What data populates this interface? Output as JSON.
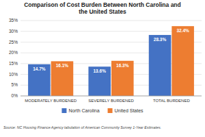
{
  "chart_data": {
    "type": "bar",
    "title": "Comparison of Cost Burden Between North Carolina and\nthe United States",
    "categories": [
      "MODERATELY BURDENED",
      "SEVERELY BURDENED",
      "TOTAL BURDENED"
    ],
    "series": [
      {
        "name": "North Carolina",
        "color": "#4472C4",
        "values": [
          14.7,
          13.6,
          28.3
        ],
        "value_labels": [
          "14.7%",
          "13.6%",
          "28.3%"
        ]
      },
      {
        "name": "United States",
        "color": "#ED7D31",
        "values": [
          16.1,
          16.3,
          32.4
        ],
        "value_labels": [
          "16.1%",
          "16.3%",
          "32.4%"
        ]
      }
    ],
    "ylim": [
      0,
      35
    ],
    "yticks": [
      {
        "value": 0,
        "label": "0%"
      },
      {
        "value": 5,
        "label": "5%"
      },
      {
        "value": 10,
        "label": "10%"
      },
      {
        "value": 15,
        "label": "15%"
      },
      {
        "value": 20,
        "label": "20%"
      },
      {
        "value": 25,
        "label": "25%"
      },
      {
        "value": 30,
        "label": "30%"
      },
      {
        "value": 35,
        "label": "35%"
      }
    ],
    "grid": true,
    "data_labels": true,
    "legend": "bottom",
    "annotations": [
      "Source: NC Housing Finance Agency tabulation of American Community Survey 1-Year Estimates."
    ]
  }
}
